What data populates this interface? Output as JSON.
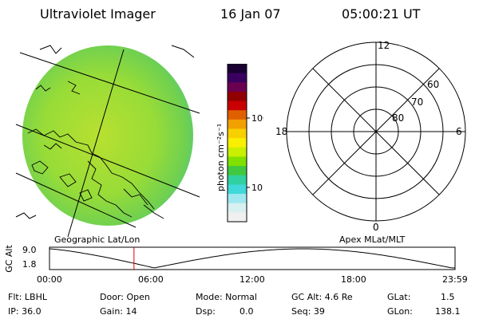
{
  "header": {
    "instrument": "Ultraviolet Imager",
    "date": "16 Jan 07",
    "time": "05:00:21 UT"
  },
  "colorbar": {
    "unit_label": "photon cm⁻²s⁻¹",
    "tick_100": "100",
    "tick_10": "10",
    "colors_top_to_bottom": [
      "#1a0033",
      "#3a0060",
      "#6a0050",
      "#900000",
      "#c80000",
      "#e06000",
      "#f0a000",
      "#f8d000",
      "#f8f000",
      "#c8f000",
      "#80e000",
      "#40c840",
      "#30d0a0",
      "#40d8d8",
      "#a0e8f0",
      "#d8f0f0",
      "#f0f0f0"
    ]
  },
  "geo_panel": {
    "label": "Geographic Lat/Lon",
    "fill_color": "#88dd44"
  },
  "polar_panel": {
    "label": "Apex MLat/MLT",
    "mlt_12": "12",
    "mlt_18": "18",
    "mlt_6": "6",
    "mlt_0": "0",
    "lat_60": "60",
    "lat_70": "70",
    "lat_80": "80"
  },
  "altitude_plot": {
    "ylabel": "GC Alt",
    "ytick_top": "9.0",
    "ytick_bottom": "1.8",
    "xticks": [
      "00:00",
      "06:00",
      "12:00",
      "18:00",
      "23:59"
    ],
    "current_time_hours": 5.0,
    "marker_color": "#dd0000"
  },
  "status": {
    "flt": "Flt: LBHL",
    "ip": "IP: 36.0",
    "door": "Door: Open",
    "gain": "Gain: 14",
    "mode": "Mode: Normal",
    "dsp_label": "Dsp:",
    "dsp_value": "0.0",
    "gc_alt": "GC Alt: 4.6 Re",
    "seq": "Seq: 39",
    "glat_label": "GLat:",
    "glat_value": "1.5",
    "glon_label": "GLon:",
    "glon_value": "138.1"
  }
}
